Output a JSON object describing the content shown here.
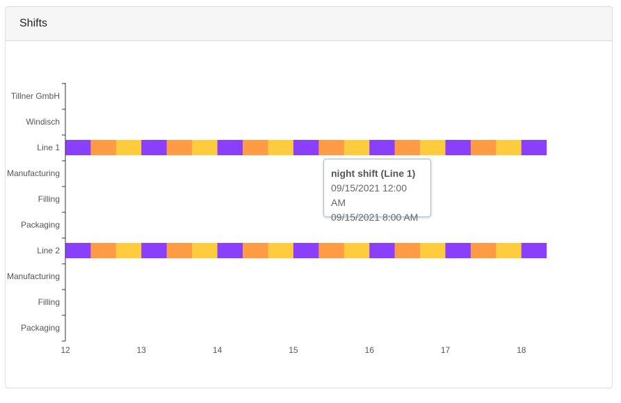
{
  "panel": {
    "title": "Shifts"
  },
  "chart_data": {
    "type": "timeline",
    "title": "",
    "xlabel": "",
    "ylabel": "",
    "x_ticks": [
      "12",
      "13",
      "14",
      "15",
      "16",
      "17",
      "18"
    ],
    "xlim": [
      12,
      18.33
    ],
    "rows": [
      "Tillner GmbH",
      "Windisch",
      "Line 1",
      "Manufacturing",
      "Filling",
      "Packaging",
      "Line 2",
      "Manufacturing",
      "Filling",
      "Packaging"
    ],
    "shift_colors": {
      "night": "#8a3ffc",
      "early": "#ff9b45",
      "late": "#ffcc3d"
    },
    "series": [
      {
        "row": "Line 1",
        "start": 12,
        "end": 18.33,
        "shift_pattern": [
          "night",
          "early",
          "late"
        ],
        "shift_length": 0.3333
      },
      {
        "row": "Line 2",
        "start": 12,
        "end": 18.33,
        "shift_pattern": [
          "night",
          "early",
          "late"
        ],
        "shift_length": 0.3333
      }
    ]
  },
  "tooltip": {
    "title": "night shift (Line 1)",
    "start": "09/15/2021 12:00 AM",
    "end": "09/15/2021 8:00 AM"
  }
}
